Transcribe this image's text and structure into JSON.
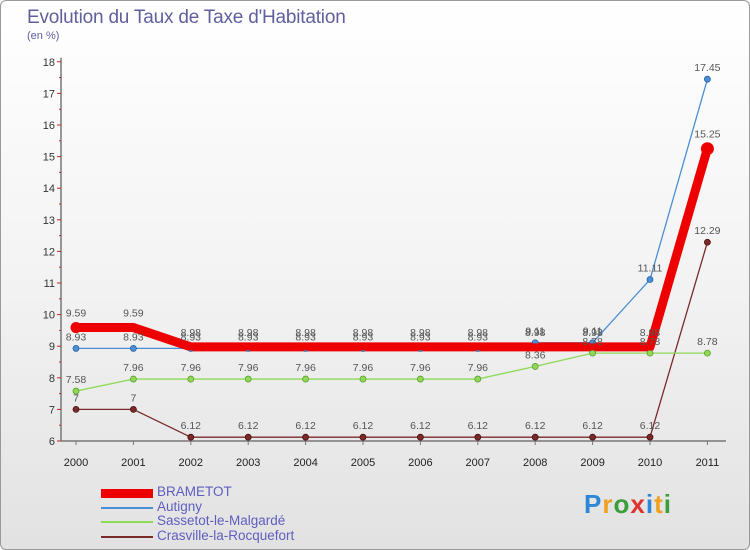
{
  "title": "Evolution du Taux de Taxe d'Habitation",
  "subtitle": "(en %)",
  "logo_text": "Proxiti",
  "chart_data": {
    "type": "line",
    "title": "Evolution du Taux de Taxe d'Habitation",
    "ylabel": "(en %)",
    "xlabel": "",
    "categories": [
      "2000",
      "2001",
      "2002",
      "2003",
      "2004",
      "2005",
      "2006",
      "2007",
      "2008",
      "2009",
      "2010",
      "2011"
    ],
    "ylim": [
      6,
      18
    ],
    "yticks": [
      "6",
      "7",
      "8",
      "9",
      "10",
      "11",
      "12",
      "13",
      "14",
      "15",
      "16",
      "17",
      "18"
    ],
    "legend_position": "bottom-left",
    "series": [
      {
        "name": "BRAMETOT",
        "color": "#ee0000",
        "values": [
          9.59,
          9.59,
          8.98,
          8.98,
          8.98,
          8.98,
          8.98,
          8.98,
          8.98,
          8.98,
          8.98,
          15.25
        ],
        "labels": [
          "9.59",
          "9.59",
          "8.98",
          "8.98",
          "8.98",
          "8.98",
          "8.98",
          "8.98",
          "8.98",
          "8.98",
          "8.98",
          "15.25"
        ]
      },
      {
        "name": "Autigny",
        "color": "#4a8ed6",
        "values": [
          8.93,
          8.93,
          8.93,
          8.93,
          8.93,
          8.93,
          8.93,
          8.93,
          9.11,
          9.11,
          11.11,
          17.45
        ],
        "labels": [
          "8.93",
          "8.93",
          "8.93",
          "8.93",
          "8.93",
          "8.93",
          "8.93",
          "8.93",
          "9.11",
          "9.11",
          "11.11",
          "17.45"
        ]
      },
      {
        "name": "Sassetot-le-Malgardé",
        "color": "#8fd957",
        "values": [
          7.58,
          7.96,
          7.96,
          7.96,
          7.96,
          7.96,
          7.96,
          7.96,
          8.36,
          8.78,
          8.78,
          8.78
        ],
        "labels": [
          "7.58",
          "7.96",
          "7.96",
          "7.96",
          "7.96",
          "7.96",
          "7.96",
          "7.96",
          "8.36",
          "8.78",
          "8.78",
          "8.78"
        ]
      },
      {
        "name": "Crasville-la-Rocquefort",
        "color": "#7a2a2a",
        "values": [
          7,
          7,
          6.12,
          6.12,
          6.12,
          6.12,
          6.12,
          6.12,
          6.12,
          6.12,
          6.12,
          12.29
        ],
        "labels": [
          "7",
          "7",
          "6.12",
          "6.12",
          "6.12",
          "6.12",
          "6.12",
          "6.12",
          "6.12",
          "6.12",
          "6.12",
          "12.29"
        ]
      }
    ]
  }
}
